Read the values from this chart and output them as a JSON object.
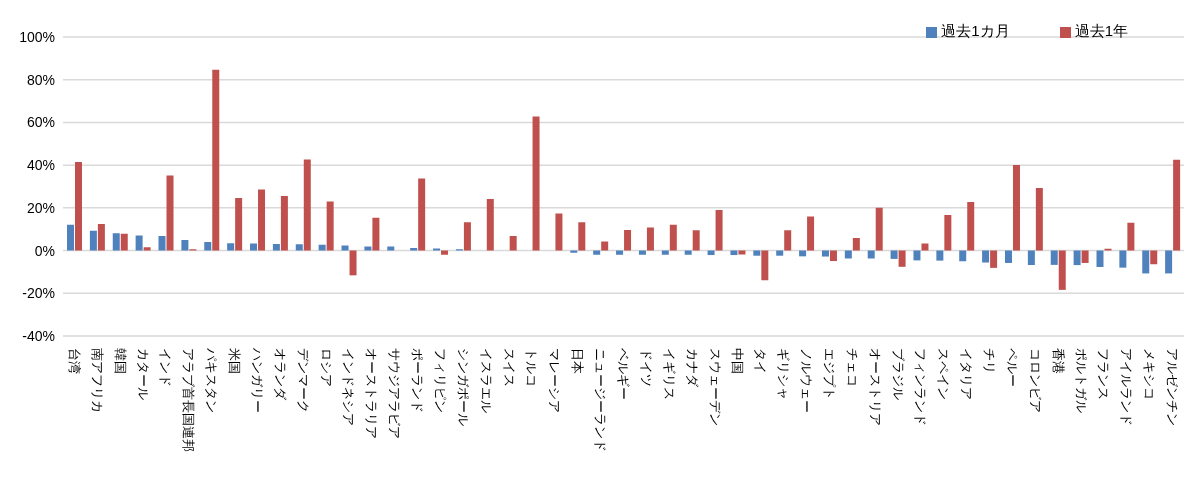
{
  "chart_data": {
    "type": "bar",
    "categories": [
      "台湾",
      "南アフリカ",
      "韓国",
      "カタール",
      "インド",
      "アラブ首長国連邦",
      "パキスタン",
      "米国",
      "ハンガリー",
      "オランダ",
      "デンマーク",
      "ロシア",
      "インドネシア",
      "オーストラリア",
      "サウジアラビア",
      "ポーランド",
      "フィリピン",
      "シンガポール",
      "イスラエル",
      "スイス",
      "トルコ",
      "マレーシア",
      "日本",
      "ニュージーランド",
      "ベルギー",
      "ドイツ",
      "イギリス",
      "カナダ",
      "スウェーデン",
      "中国",
      "タイ",
      "ギリシャ",
      "ノルウェー",
      "エジプト",
      "チェコ",
      "オーストリア",
      "ブラジル",
      "フィンランド",
      "スペイン",
      "イタリア",
      "チリ",
      "ペルー",
      "コロンビア",
      "香港",
      "ポルトガル",
      "フランス",
      "アイルランド",
      "メキシコ",
      "アルゼンチン"
    ],
    "series": [
      {
        "name": "過去1カ月",
        "color": "#4f81bd",
        "values": [
          12.1,
          9.3,
          8.1,
          7.1,
          6.8,
          4.9,
          4.0,
          3.4,
          3.3,
          3.1,
          3.0,
          2.7,
          2.4,
          1.9,
          1.9,
          1.2,
          1.0,
          0.6,
          null,
          null,
          0,
          0,
          -1.0,
          -1.9,
          -1.9,
          -1.9,
          -1.9,
          -1.9,
          -2.1,
          -2.1,
          -2.4,
          -2.4,
          -2.7,
          -2.8,
          -3.7,
          -3.7,
          -3.9,
          -4.6,
          -4.7,
          -5.0,
          -5.6,
          -5.8,
          -6.7,
          -6.7,
          -6.8,
          -7.7,
          -8.0,
          -10.7,
          -10.7
        ]
      },
      {
        "name": "過去1年",
        "color": "#c0504d",
        "values": [
          41.5,
          12.4,
          7.9,
          1.5,
          35.1,
          0.6,
          84.7,
          24.6,
          28.6,
          25.6,
          42.7,
          23.0,
          -11.6,
          15.4,
          0,
          33.8,
          -1.9,
          13.3,
          24.1,
          6.8,
          62.8,
          17.3,
          13.3,
          4.3,
          9.6,
          10.8,
          12.1,
          9.5,
          19.0,
          -1.8,
          -13.9,
          9.5,
          15.9,
          -4.9,
          5.9,
          20.0,
          -7.6,
          3.3,
          16.6,
          22.8,
          -8.1,
          40.1,
          29.3,
          -18.4,
          -5.8,
          0.9,
          13.0,
          -6.4,
          42.5
        ]
      }
    ],
    "ylim": [
      -40,
      100
    ],
    "yticks": [
      {
        "value": -40,
        "label": "-40%"
      },
      {
        "value": -20,
        "label": "-20%"
      },
      {
        "value": 0,
        "label": "0%"
      },
      {
        "value": 20,
        "label": "20%"
      },
      {
        "value": 40,
        "label": "40%"
      },
      {
        "value": 60,
        "label": "60%"
      },
      {
        "value": 80,
        "label": "80%"
      },
      {
        "value": 100,
        "label": "100%"
      }
    ],
    "grid": "y",
    "legend": "top right"
  }
}
